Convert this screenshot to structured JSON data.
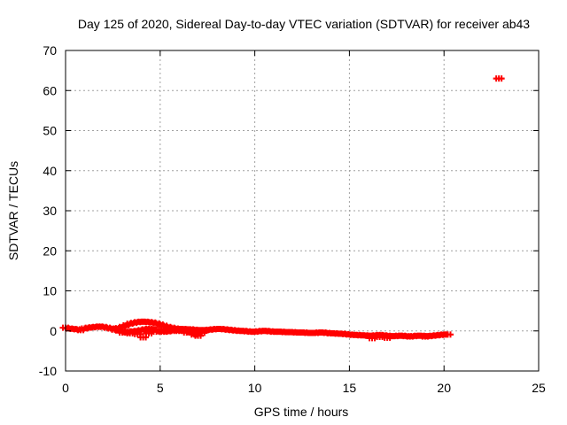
{
  "chart_data": {
    "type": "scatter",
    "title": "Day 125 of 2020, Sidereal Day-to-day VTEC variation (SDTVAR) for receiver ab43",
    "xlabel": "GPS time / hours",
    "ylabel": "SDTVAR / TECUs",
    "xlim": [
      0,
      25
    ],
    "ylim": [
      -10,
      70
    ],
    "xticks": [
      0,
      5,
      10,
      15,
      20,
      25
    ],
    "yticks": [
      -10,
      0,
      10,
      20,
      30,
      40,
      50,
      60,
      70
    ],
    "xtick_labels": [
      "0",
      "5",
      "10",
      "15",
      "20",
      "25"
    ],
    "ytick_labels": [
      "-10",
      "0",
      "10",
      "20",
      "30",
      "40",
      "50",
      "60",
      "70"
    ],
    "grid": true,
    "marker": "plus",
    "series": [
      {
        "name": "SDTVAR",
        "color": "#ff0000",
        "x": [
          0.0,
          0.2,
          0.4,
          0.6,
          0.8,
          1.0,
          1.2,
          1.4,
          1.6,
          1.8,
          2.0,
          2.2,
          2.4,
          2.6,
          2.8,
          3.0,
          3.2,
          3.4,
          3.6,
          3.8,
          4.0,
          4.2,
          4.4,
          4.6,
          4.8,
          5.0,
          5.2,
          5.4,
          5.6,
          5.8,
          6.0,
          6.2,
          6.4,
          6.6,
          6.8,
          7.0,
          7.2,
          7.4,
          7.6,
          7.8,
          8.0,
          8.2,
          8.4,
          8.6,
          8.8,
          9.0,
          9.2,
          9.4,
          9.6,
          9.8,
          10.0,
          10.2,
          10.4,
          10.6,
          10.8,
          11.0,
          11.2,
          11.4,
          11.6,
          11.8,
          12.0,
          12.2,
          12.4,
          12.6,
          12.8,
          13.0,
          13.2,
          13.4,
          13.6,
          13.8,
          14.0,
          14.2,
          14.4,
          14.6,
          14.8,
          15.0,
          15.2,
          15.4,
          15.6,
          15.8,
          16.0,
          16.2,
          16.4,
          16.6,
          16.8,
          17.0,
          17.2,
          17.4,
          17.6,
          17.8,
          18.0,
          18.2,
          18.4,
          18.6,
          18.8,
          19.0,
          19.2,
          19.4,
          19.6,
          19.8,
          20.0,
          20.2,
          2.6,
          2.8,
          3.0,
          3.2,
          3.4,
          3.6,
          3.8,
          4.0,
          4.2,
          4.4,
          4.6,
          4.8,
          5.0,
          5.2,
          5.4,
          5.6,
          5.8,
          6.0,
          6.2,
          6.4,
          6.6,
          6.8,
          3.0,
          3.4,
          3.8,
          4.1,
          4.4,
          4.8,
          5.2,
          5.6,
          6.0,
          6.4,
          6.8,
          7.0,
          7.2,
          16.2,
          16.6,
          17.0,
          19.0,
          22.9
        ],
        "y": [
          0.8,
          0.6,
          0.5,
          0.4,
          0.2,
          0.6,
          0.8,
          0.9,
          1.0,
          1.1,
          1.0,
          0.8,
          0.6,
          0.5,
          0.7,
          1.0,
          1.4,
          1.8,
          2.0,
          2.2,
          2.3,
          2.3,
          2.2,
          2.1,
          1.9,
          1.6,
          1.3,
          1.0,
          0.8,
          0.6,
          0.5,
          0.5,
          0.4,
          0.4,
          0.3,
          0.2,
          0.2,
          0.2,
          0.3,
          0.4,
          0.5,
          0.5,
          0.4,
          0.3,
          0.2,
          0.1,
          0.0,
          0.0,
          -0.1,
          -0.2,
          -0.2,
          -0.1,
          0.0,
          0.0,
          -0.1,
          -0.2,
          -0.2,
          -0.2,
          -0.3,
          -0.3,
          -0.3,
          -0.4,
          -0.4,
          -0.4,
          -0.5,
          -0.5,
          -0.5,
          -0.4,
          -0.4,
          -0.5,
          -0.6,
          -0.6,
          -0.7,
          -0.7,
          -0.8,
          -0.9,
          -1.0,
          -1.0,
          -1.1,
          -1.1,
          -1.2,
          -1.2,
          -1.1,
          -1.0,
          -1.1,
          -1.2,
          -1.3,
          -1.3,
          -1.2,
          -1.2,
          -1.3,
          -1.4,
          -1.3,
          -1.2,
          -1.2,
          -1.3,
          -1.3,
          -1.2,
          -1.1,
          -1.0,
          -0.9,
          -0.9,
          0.3,
          0.1,
          -0.1,
          -0.3,
          -0.2,
          -0.1,
          0.0,
          0.2,
          0.4,
          0.5,
          0.4,
          0.3,
          0.0,
          -0.2,
          -0.1,
          0.0,
          0.2,
          0.3,
          0.1,
          0.0,
          -0.3,
          -0.5,
          -0.4,
          -0.6,
          -0.8,
          -1.6,
          -0.6,
          -0.2,
          0.2,
          0.5,
          0.0,
          -0.4,
          -0.9,
          -1.2,
          -0.5,
          -1.8,
          -1.5,
          -1.7,
          -1.4,
          63.0
        ]
      }
    ]
  }
}
